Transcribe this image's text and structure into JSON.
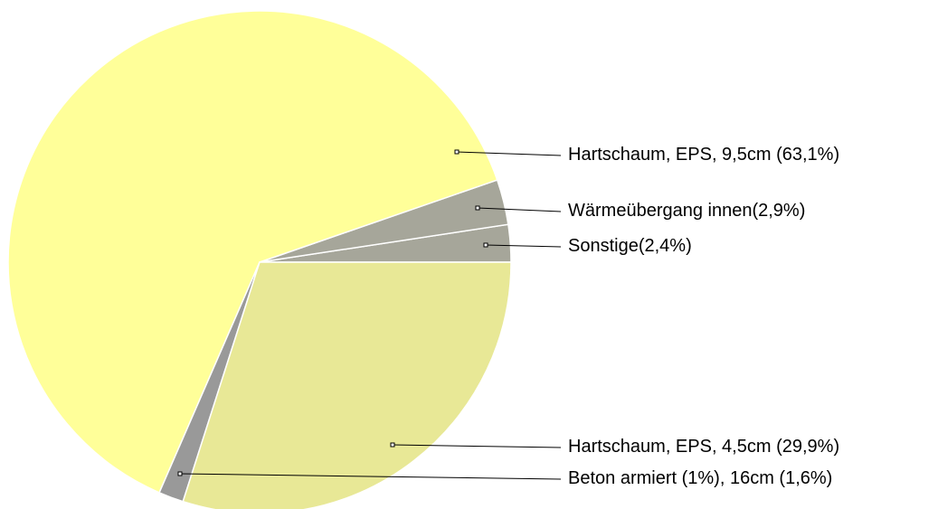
{
  "chart_data": {
    "type": "pie",
    "categories": [
      "Sonstige",
      "Wärmeübergang innen",
      "Hartschaum, EPS, 9,5cm ",
      "Beton armiert (1%), 16cm ",
      "Hartschaum, EPS, 4,5cm "
    ],
    "values": [
      2.4,
      2.9,
      63.1,
      1.6,
      29.9
    ],
    "value_labels": [
      "(2,4%)",
      "(2,9%)",
      "(63,1%)",
      "(1,6%)",
      "(29,9%)"
    ],
    "colors": [
      "#a6a69a",
      "#a6a69a",
      "#ffff99",
      "#999999",
      "#e8e896"
    ]
  }
}
